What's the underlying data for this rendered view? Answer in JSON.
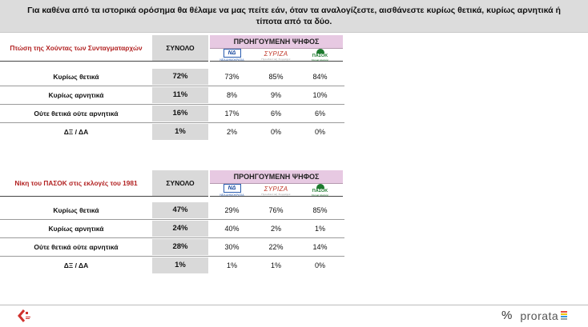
{
  "header": {
    "question": "Για καθένα από τα ιστορικά ορόσημα θα θέλαμε να μας πείτε εάν, όταν τα αναλογίζεστε, αισθάνεστε κυρίως θετικά, κυρίως αρνητικά ή τίποτα από τα δύο."
  },
  "columns": {
    "total": "ΣΥΝΟΛΟ",
    "previous_vote": "ΠΡΟΗΓΟΥΜΕΝΗ ΨΗΦΟΣ",
    "parties": [
      "ΝΔ",
      "ΣΥΡΙΖΑ",
      "ΠΑΣΟΚ"
    ],
    "party_colors": [
      "#2a5db0",
      "#c0392b",
      "#1d7a2e"
    ]
  },
  "tables": [
    {
      "title": "Πτώση της Χούντας των Συνταγματαρχών",
      "rows": [
        {
          "label": "Κυρίως θετικά",
          "total": "72%",
          "nd": "73%",
          "syriza": "85%",
          "pasok": "84%"
        },
        {
          "label": "Κυρίως αρνητικά",
          "total": "11%",
          "nd": "8%",
          "syriza": "9%",
          "pasok": "10%"
        },
        {
          "label": "Ούτε θετικά ούτε αρνητικά",
          "total": "16%",
          "nd": "17%",
          "syriza": "6%",
          "pasok": "6%"
        },
        {
          "label": "ΔΞ / ΔΑ",
          "total": "1%",
          "nd": "2%",
          "syriza": "0%",
          "pasok": "0%"
        }
      ]
    },
    {
      "title": "Νίκη του ΠΑΣΟΚ στις εκλογές του 1981",
      "rows": [
        {
          "label": "Κυρίως θετικά",
          "total": "47%",
          "nd": "29%",
          "syriza": "76%",
          "pasok": "85%"
        },
        {
          "label": "Κυρίως αρνητικά",
          "total": "24%",
          "nd": "40%",
          "syriza": "2%",
          "pasok": "1%"
        },
        {
          "label": "Ούτε θετικά ούτε αρνητικά",
          "total": "28%",
          "nd": "30%",
          "syriza": "22%",
          "pasok": "14%"
        },
        {
          "label": "ΔΞ / ΔΑ",
          "total": "1%",
          "nd": "1%",
          "syriza": "1%",
          "pasok": "0%"
        }
      ]
    }
  ],
  "footer": {
    "brand": "prorata",
    "brand_mark": "%",
    "brand_bar_colors": [
      "#e74c3c",
      "#f1c40f",
      "#3498db",
      "#95a5a6"
    ]
  }
}
